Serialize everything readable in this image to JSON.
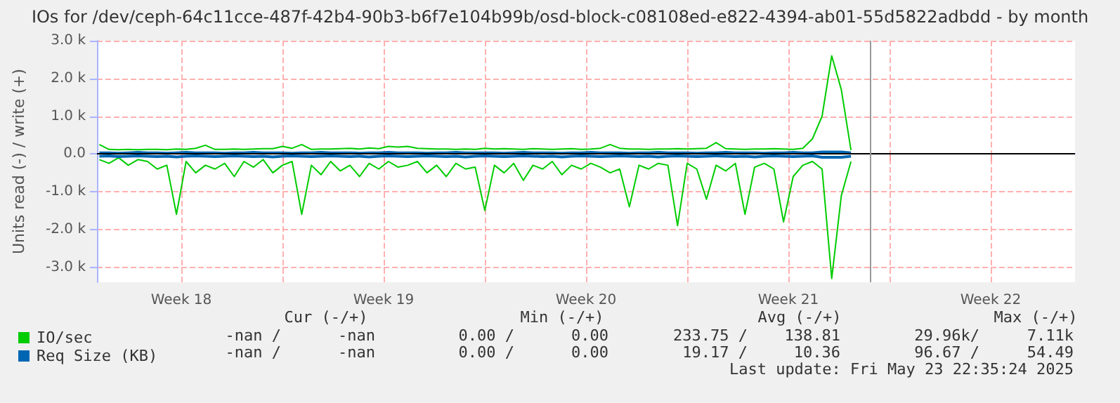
{
  "chart_data": {
    "type": "line",
    "title": "IOs for /dev/ceph-64c11cce-487f-42b4-90b3-b6f7e104b99b/osd-block-c08108ed-e822-4394-ab01-55d5822adbdd - by month",
    "ylabel": "Units read (-) / write (+)",
    "x": [
      "2025-04-28T16:00",
      "2025-04-29T00:00",
      "2025-04-29T08:00",
      "2025-04-29T16:00",
      "2025-04-30T00:00",
      "2025-04-30T08:00",
      "2025-04-30T16:00",
      "2025-05-01T00:00",
      "2025-05-01T08:00",
      "2025-05-01T16:00",
      "2025-05-02T00:00",
      "2025-05-02T08:00",
      "2025-05-02T16:00",
      "2025-05-03T00:00",
      "2025-05-03T08:00",
      "2025-05-03T16:00",
      "2025-05-04T00:00",
      "2025-05-04T08:00",
      "2025-05-04T16:00",
      "2025-05-05T00:00",
      "2025-05-05T08:00",
      "2025-05-05T16:00",
      "2025-05-06T00:00",
      "2025-05-06T08:00",
      "2025-05-06T16:00",
      "2025-05-07T00:00",
      "2025-05-07T08:00",
      "2025-05-07T16:00",
      "2025-05-08T00:00",
      "2025-05-08T08:00",
      "2025-05-08T16:00",
      "2025-05-09T00:00",
      "2025-05-09T08:00",
      "2025-05-09T16:00",
      "2025-05-10T00:00",
      "2025-05-10T08:00",
      "2025-05-10T16:00",
      "2025-05-11T00:00",
      "2025-05-11T08:00",
      "2025-05-11T16:00",
      "2025-05-12T00:00",
      "2025-05-12T08:00",
      "2025-05-12T16:00",
      "2025-05-13T00:00",
      "2025-05-13T08:00",
      "2025-05-13T16:00",
      "2025-05-14T00:00",
      "2025-05-14T08:00",
      "2025-05-14T16:00",
      "2025-05-15T00:00",
      "2025-05-15T08:00",
      "2025-05-15T16:00",
      "2025-05-16T00:00",
      "2025-05-16T08:00",
      "2025-05-16T16:00",
      "2025-05-17T00:00",
      "2025-05-17T08:00",
      "2025-05-17T16:00",
      "2025-05-18T00:00",
      "2025-05-18T08:00",
      "2025-05-18T16:00",
      "2025-05-19T00:00",
      "2025-05-19T08:00",
      "2025-05-19T16:00",
      "2025-05-20T00:00",
      "2025-05-20T08:00",
      "2025-05-20T16:00",
      "2025-05-21T00:00",
      "2025-05-21T08:00",
      "2025-05-21T16:00",
      "2025-05-22T00:00",
      "2025-05-22T08:00",
      "2025-05-22T16:00",
      "2025-05-23T00:00",
      "2025-05-23T08:00",
      "2025-05-23T16:00",
      "2025-05-24T00:00",
      "2025-05-24T08:00",
      "2025-05-24T16:00"
    ],
    "series": [
      {
        "name": "IO/sec",
        "color": "#00cc00",
        "values": [
          250,
          120,
          110,
          120,
          110,
          120,
          120,
          110,
          130,
          120,
          150,
          230,
          120,
          120,
          130,
          120,
          130,
          140,
          140,
          200,
          150,
          250,
          120,
          130,
          130,
          140,
          150,
          130,
          160,
          140,
          200,
          180,
          200,
          150,
          140,
          130,
          130,
          120,
          130,
          120,
          150,
          130,
          140,
          130,
          120,
          140,
          130,
          120,
          130,
          140,
          120,
          130,
          150,
          250,
          150,
          130,
          130,
          120,
          130,
          130,
          140,
          130,
          140,
          150,
          300,
          140,
          130,
          120,
          130,
          130,
          140,
          130,
          120,
          150,
          400,
          1000,
          2600,
          1700,
          100
        ]
      },
      {
        "color": "#00cc00",
        "values": [
          -150,
          -250,
          -100,
          -300,
          -150,
          -200,
          -400,
          -300,
          -1600,
          -200,
          -500,
          -300,
          -400,
          -250,
          -600,
          -200,
          -350,
          -150,
          -500,
          -300,
          -200,
          -1600,
          -300,
          -550,
          -200,
          -450,
          -300,
          -600,
          -250,
          -400,
          -200,
          -350,
          -300,
          -200,
          -500,
          -300,
          -600,
          -250,
          -400,
          -350,
          -1500,
          -300,
          -500,
          -250,
          -700,
          -300,
          -400,
          -200,
          -550,
          -300,
          -400,
          -250,
          -350,
          -500,
          -400,
          -1400,
          -300,
          -400,
          -250,
          -300,
          -1900,
          -250,
          -400,
          -1200,
          -300,
          -450,
          -250,
          -1600,
          -350,
          -250,
          -400,
          -1800,
          -600,
          -300,
          -200,
          -400,
          -3300,
          -1100,
          -200
        ]
      },
      {
        "name": "Req Size (KB)",
        "color": "#0066b3",
        "values": [
          30,
          30,
          20,
          30,
          40,
          30,
          30,
          20,
          30,
          40,
          30,
          30,
          30,
          20,
          30,
          30,
          40,
          30,
          30,
          30,
          20,
          30,
          30,
          40,
          30,
          30,
          30,
          20,
          30,
          30,
          40,
          30,
          30,
          30,
          20,
          30,
          30,
          40,
          30,
          30,
          30,
          30,
          20,
          30,
          40,
          30,
          30,
          30,
          20,
          30,
          30,
          40,
          30,
          30,
          30,
          20,
          30,
          30,
          40,
          30,
          30,
          30,
          20,
          30,
          30,
          40,
          30,
          30,
          30,
          20,
          30,
          30,
          40,
          30,
          30,
          50,
          50,
          50,
          30
        ]
      },
      {
        "color": "#0066b3",
        "values": [
          -60,
          -50,
          -70,
          -60,
          -50,
          -60,
          -70,
          -60,
          -80,
          -60,
          -50,
          -60,
          -70,
          -60,
          -50,
          -60,
          -70,
          -60,
          -80,
          -60,
          -50,
          -60,
          -70,
          -60,
          -50,
          -60,
          -70,
          -60,
          -80,
          -60,
          -50,
          -60,
          -70,
          -60,
          -50,
          -60,
          -70,
          -60,
          -80,
          -60,
          -50,
          -60,
          -70,
          -60,
          -50,
          -60,
          -70,
          -60,
          -80,
          -60,
          -50,
          -60,
          -70,
          -60,
          -50,
          -60,
          -70,
          -60,
          -80,
          -60,
          -50,
          -60,
          -70,
          -60,
          -50,
          -60,
          -70,
          -60,
          -80,
          -60,
          -50,
          -60,
          -70,
          -60,
          -50,
          -90,
          -90,
          -90,
          -60
        ]
      }
    ],
    "xlim": [
      "2025-04-28T14:00",
      "2025-06-01T10:00"
    ],
    "xticks": [
      {
        "value": "2025-05-01T12:00",
        "label": "Week 18"
      },
      {
        "value": "2025-05-05T00:00",
        "label": null
      },
      {
        "value": "2025-05-08T12:00",
        "label": "Week 19"
      },
      {
        "value": "2025-05-12T00:00",
        "label": null
      },
      {
        "value": "2025-05-15T12:00",
        "label": "Week 20"
      },
      {
        "value": "2025-05-19T00:00",
        "label": null
      },
      {
        "value": "2025-05-22T12:00",
        "label": "Week 21"
      },
      {
        "value": "2025-05-26T00:00",
        "label": null
      },
      {
        "value": "2025-05-29T12:00",
        "label": "Week 22"
      }
    ],
    "ylim": [
      -3400,
      3000
    ],
    "yticks": [
      {
        "value": -3000,
        "label": "-3.0 k"
      },
      {
        "value": -2000,
        "label": "-2.0 k"
      },
      {
        "value": -1000,
        "label": "-1.0 k"
      },
      {
        "value": 0,
        "label": "0.0"
      },
      {
        "value": 1000,
        "label": "1.0 k"
      },
      {
        "value": 2000,
        "label": "2.0 k"
      },
      {
        "value": 3000,
        "label": "3.0 k"
      }
    ],
    "ref_lines": [
      {
        "axis": "y",
        "value": 0,
        "color": "#000000"
      },
      {
        "axis": "x",
        "value": "2025-05-25T08:00",
        "color": "#999999"
      }
    ],
    "grid": true,
    "legend": "bottom left",
    "marker": "none",
    "line_style": "solid",
    "annotations": [
      "Cur (-/+)",
      "Min (-/+)",
      "Avg (-/+)",
      "Max (-/+)",
      "-nan /",
      "-nan",
      "0.00 /",
      "0.00",
      "233.75 /",
      "138.81",
      "29.96k/",
      "7.11k",
      "-nan /",
      "-nan",
      "0.00 /",
      "0.00",
      "19.17 /",
      "10.36",
      "96.67 /",
      "54.49",
      "Last update: Fri May 23 22:35:24 2025"
    ]
  }
}
